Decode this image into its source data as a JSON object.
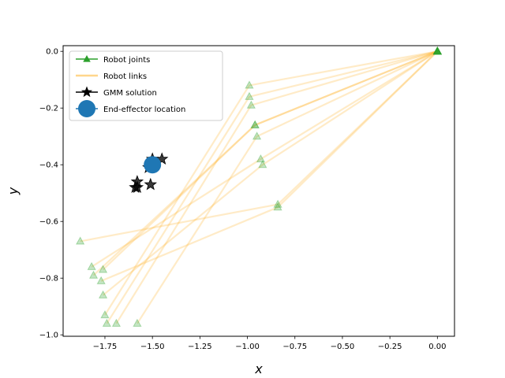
{
  "chart_data": {
    "type": "scatter",
    "title": "",
    "xlabel": "x",
    "ylabel": "y",
    "xlim": [
      -1.97,
      0.09
    ],
    "ylim": [
      -1.005,
      0.02
    ],
    "xticks": [
      -1.75,
      -1.5,
      -1.25,
      -1.0,
      -0.75,
      -0.5,
      -0.25,
      0.0
    ],
    "xtick_labels": [
      "−1.75",
      "−1.50",
      "−1.25",
      "−1.00",
      "−0.75",
      "−0.50",
      "−0.25",
      "0.00"
    ],
    "yticks": [
      0.0,
      -0.2,
      -0.4,
      -0.6,
      -0.8,
      -1.0
    ],
    "ytick_labels": [
      "0.0",
      "−0.2",
      "−0.4",
      "−0.6",
      "−0.8",
      "−1.0"
    ],
    "grid": false,
    "legend_position": "top-left",
    "legend": [
      {
        "label": "Robot joints",
        "key": "joints"
      },
      {
        "label": "Robot links",
        "key": "links"
      },
      {
        "label": "GMM solution",
        "key": "gmm"
      },
      {
        "label": "End-effector location",
        "key": "ee"
      }
    ],
    "colors": {
      "joints": "#2ca02c",
      "links": "#ffa500",
      "gmm": "#000000",
      "ee": "#1f77b4"
    },
    "base": [
      0.0,
      0.0
    ],
    "arms": [
      {
        "joint": [
          -0.99,
          -0.12
        ],
        "end": [
          -1.75,
          -0.93
        ]
      },
      {
        "joint": [
          -0.99,
          -0.16
        ],
        "end": [
          -1.74,
          -0.96
        ]
      },
      {
        "joint": [
          -0.98,
          -0.19
        ],
        "end": [
          -1.69,
          -0.96
        ]
      },
      {
        "joint": [
          -0.96,
          -0.26
        ],
        "end": [
          -1.76,
          -0.77
        ]
      },
      {
        "joint": [
          -0.96,
          -0.26
        ],
        "end": [
          -1.81,
          -0.79
        ]
      },
      {
        "joint": [
          -0.95,
          -0.3
        ],
        "end": [
          -1.58,
          -0.96
        ]
      },
      {
        "joint": [
          -0.93,
          -0.38
        ],
        "end": [
          -1.82,
          -0.76
        ]
      },
      {
        "joint": [
          -0.92,
          -0.4
        ],
        "end": [
          -1.76,
          -0.86
        ]
      },
      {
        "joint": [
          -0.84,
          -0.54
        ],
        "end": [
          -1.88,
          -0.67
        ]
      },
      {
        "joint": [
          -0.84,
          -0.55
        ],
        "end": [
          -1.77,
          -0.81
        ]
      }
    ],
    "gmm_solution": [
      [
        -1.45,
        -0.38
      ],
      [
        -1.5,
        -0.38
      ],
      [
        -1.52,
        -0.41
      ],
      [
        -1.51,
        -0.47
      ],
      [
        -1.58,
        -0.46
      ],
      [
        -1.58,
        -0.48
      ],
      [
        -1.59,
        -0.48
      ]
    ],
    "end_effector": [
      -1.5,
      -0.4
    ]
  }
}
